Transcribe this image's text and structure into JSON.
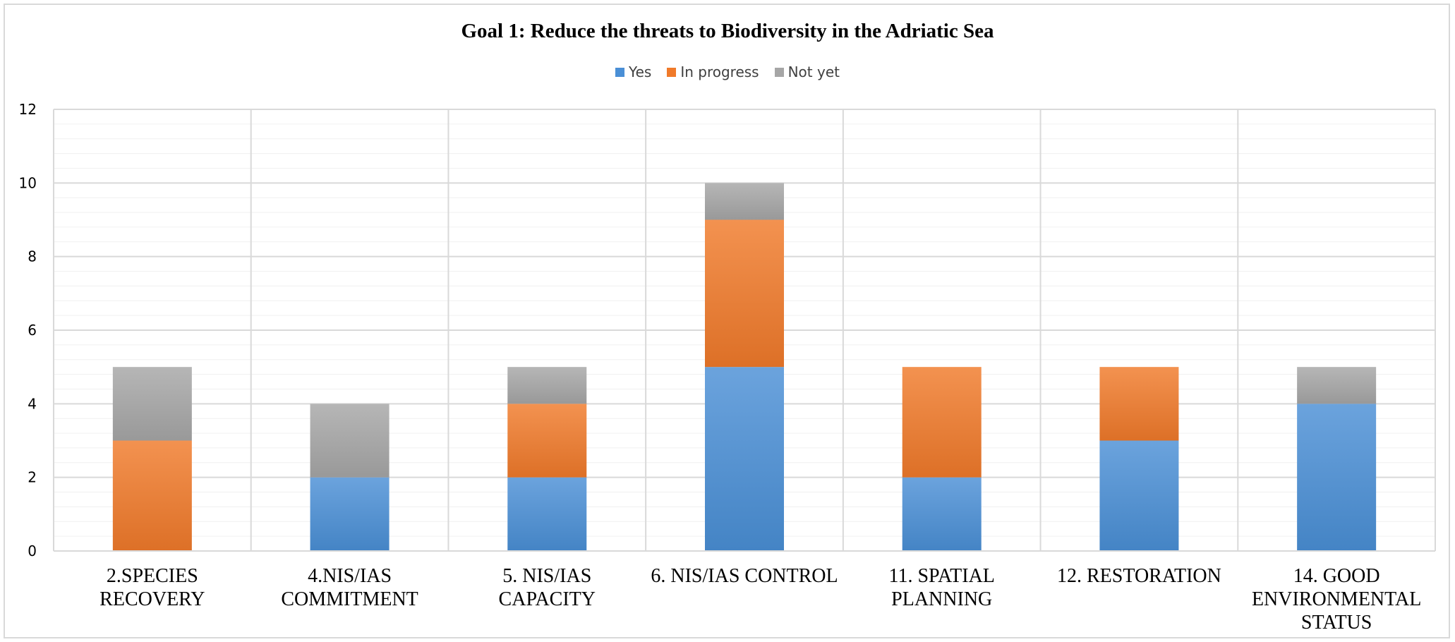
{
  "chart_data": {
    "type": "bar",
    "stacked": true,
    "title": "Goal 1: Reduce the threats to Biodiversity in the Adriatic Sea",
    "xlabel": "",
    "ylabel": "",
    "ylim": [
      0,
      12
    ],
    "yticks": [
      0,
      2,
      4,
      6,
      8,
      10,
      12
    ],
    "grid": true,
    "legend_position": "top",
    "categories": [
      [
        "2.SPECIES",
        "RECOVERY"
      ],
      [
        "4.NIS/IAS",
        "COMMITMENT"
      ],
      [
        "5. NIS/IAS",
        "CAPACITY"
      ],
      [
        "6. NIS/IAS CONTROL"
      ],
      [
        "11. SPATIAL",
        "PLANNING"
      ],
      [
        "12. RESTORATION"
      ],
      [
        "14. GOOD",
        "ENVIRONMENTAL",
        "STATUS"
      ]
    ],
    "series": [
      {
        "name": "Yes",
        "color": "#4a8fd6",
        "values": [
          0,
          2,
          2,
          5,
          2,
          3,
          4
        ]
      },
      {
        "name": "In progress",
        "color": "#f07a2a",
        "values": [
          3,
          0,
          2,
          4,
          3,
          2,
          0
        ]
      },
      {
        "name": "Not yet",
        "color": "#a6a6a6",
        "values": [
          2,
          2,
          1,
          1,
          0,
          0,
          1
        ]
      }
    ]
  }
}
